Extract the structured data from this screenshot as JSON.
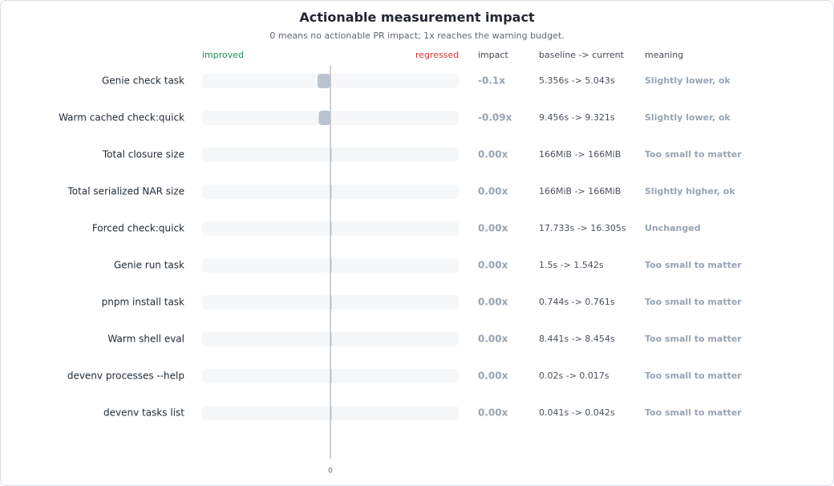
{
  "chart_data": {
    "type": "bar",
    "title": "Actionable measurement impact",
    "subtitle": "0 means no actionable PR impact; 1x reaches the warning budget.",
    "left_label": "improved",
    "right_label": "regressed",
    "columns": {
      "impact": "impact",
      "baseline": "baseline -> current",
      "meaning": "meaning"
    },
    "xlim": [
      -1,
      1
    ],
    "x_tick": "0",
    "colors": {
      "improved": "#1b8f5a",
      "regressed": "#d93030",
      "bar": "#b9c3cf",
      "track": "#f5f7f9",
      "muted": "#98a4b3"
    },
    "rows": [
      {
        "label": "Genie check task",
        "value": -0.1,
        "impact": "-0.1x",
        "baseline": "5.356s -> 5.043s",
        "meaning": "Slightly lower, ok"
      },
      {
        "label": "Warm cached check:quick",
        "value": -0.09,
        "impact": "-0.09x",
        "baseline": "9.456s -> 9.321s",
        "meaning": "Slightly lower, ok"
      },
      {
        "label": "Total closure size",
        "value": 0.0,
        "impact": "0.00x",
        "baseline": "166MiB -> 166MiB",
        "meaning": "Too small to matter"
      },
      {
        "label": "Total serialized NAR size",
        "value": 0.0,
        "impact": "0.00x",
        "baseline": "166MiB -> 166MiB",
        "meaning": "Slightly higher, ok"
      },
      {
        "label": "Forced check:quick",
        "value": 0.0,
        "impact": "0.00x",
        "baseline": "17.733s -> 16.305s",
        "meaning": "Unchanged"
      },
      {
        "label": "Genie run task",
        "value": 0.0,
        "impact": "0.00x",
        "baseline": "1.5s -> 1.542s",
        "meaning": "Too small to matter"
      },
      {
        "label": "pnpm install task",
        "value": 0.0,
        "impact": "0.00x",
        "baseline": "0.744s -> 0.761s",
        "meaning": "Too small to matter"
      },
      {
        "label": "Warm shell eval",
        "value": 0.0,
        "impact": "0.00x",
        "baseline": "8.441s -> 8.454s",
        "meaning": "Too small to matter"
      },
      {
        "label": "devenv processes --help",
        "value": 0.0,
        "impact": "0.00x",
        "baseline": "0.02s -> 0.017s",
        "meaning": "Too small to matter"
      },
      {
        "label": "devenv tasks list",
        "value": 0.0,
        "impact": "0.00x",
        "baseline": "0.041s -> 0.042s",
        "meaning": "Too small to matter"
      }
    ]
  }
}
